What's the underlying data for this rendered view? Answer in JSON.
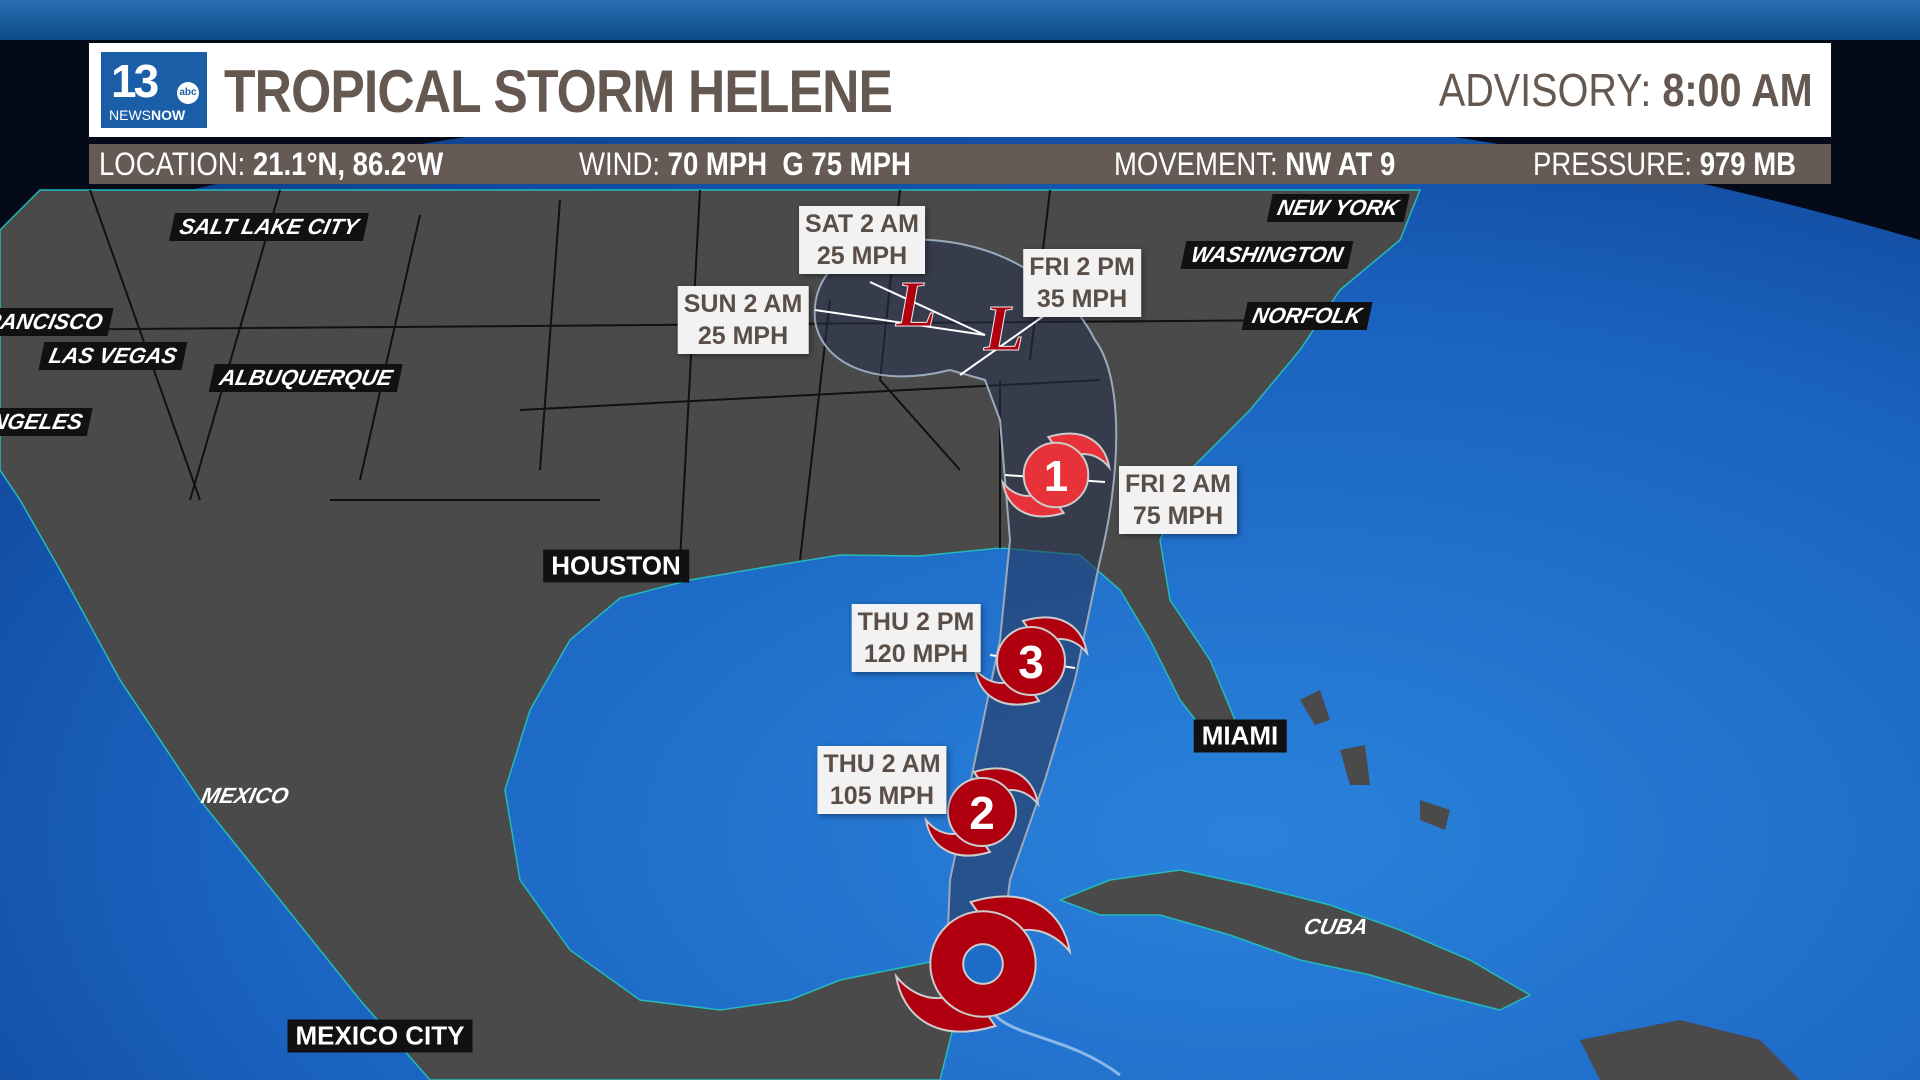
{
  "header": {
    "logo_text": {
      "number": "13",
      "network": "abc",
      "brand_news": "NEWS",
      "brand_now": "NOW"
    },
    "title": "TROPICAL STORM HELENE",
    "advisory_label": "ADVISORY:",
    "advisory_value": "8:00 AM"
  },
  "databar": {
    "location_label": "LOCATION:",
    "location_value": "21.1°N, 86.2°W",
    "wind_label": "WIND:",
    "wind_value": "70 MPH  G 75 MPH",
    "movement_label": "MOVEMENT:",
    "movement_value": "NW AT 9",
    "pressure_label": "PRESSURE:",
    "pressure_value": "979 MB"
  },
  "cities": [
    "SALT LAKE CITY",
    "FRANCISCO",
    "LAS VEGAS",
    "ALBUQUERQUE",
    "NGELES",
    "HOUSTON",
    "NEW YORK",
    "WASHINGTON",
    "NORFOLK",
    "MIAMI",
    "CUBA",
    "MEXICO",
    "MEXICO CITY"
  ],
  "forecast_points": [
    {
      "time": "THU 2 AM",
      "wind": "105 MPH",
      "category": "2"
    },
    {
      "time": "THU 2 PM",
      "wind": "120 MPH",
      "category": "3"
    },
    {
      "time": "FRI 2 AM",
      "wind": "75 MPH",
      "category": "1"
    },
    {
      "time": "FRI 2 PM",
      "wind": "35 MPH",
      "category": "L"
    },
    {
      "time": "SAT 2 AM",
      "wind": "25 MPH",
      "category": "L"
    },
    {
      "time": "SUN 2 AM",
      "wind": "25 MPH",
      "category": "L"
    }
  ],
  "colors": {
    "storm_red": "#b00010",
    "cat1_red": "#e8323a",
    "header_text": "#645850",
    "databar_bg": "#665a54",
    "ocean": "#1d6cc8",
    "land": "#4a4a4a",
    "logo_blue": "#1a5ea8"
  }
}
